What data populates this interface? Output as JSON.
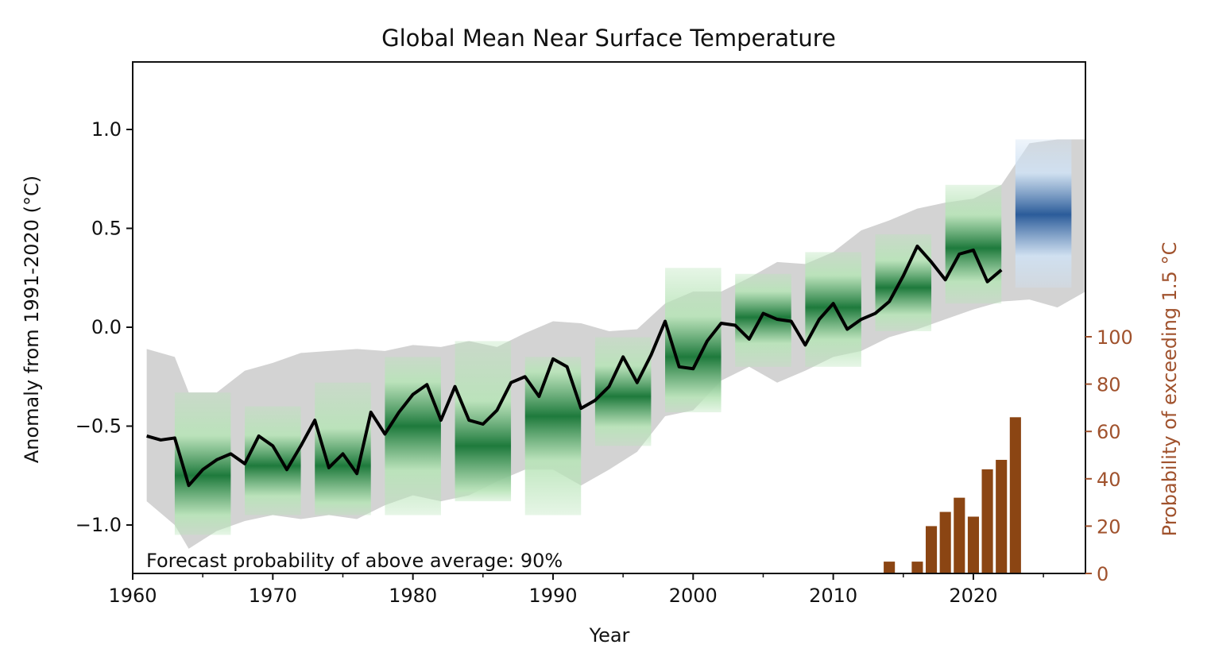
{
  "chart_data": {
    "type": "line",
    "title": "Global Mean Near Surface Temperature",
    "xlabel": "Year",
    "ylabel": "Anomaly from 1991-2020 (°C)",
    "y2label": "Probability of exceeding 1.5 °C",
    "annotation": "Forecast probability of above average: 90%",
    "xlim": [
      1960,
      2028
    ],
    "ylim": [
      -1.25,
      1.34
    ],
    "y2lim": [
      0,
      220
    ],
    "xticks": [
      "1960",
      "1970",
      "1980",
      "1990",
      "2000",
      "2010",
      "2020"
    ],
    "yticks": [
      "1.0",
      "0.5",
      "0.0",
      "−0.5",
      "−1.0"
    ],
    "ytick_values": [
      1.0,
      0.5,
      0.0,
      -0.5,
      -1.0
    ],
    "y2ticks": [
      "0",
      "20",
      "40",
      "60",
      "80",
      "100"
    ],
    "grid": false,
    "colors": {
      "observed": "#000000",
      "envelope": "#d3d3d3",
      "hindcast": "#1e7a3c",
      "forecast": "#2b5c9a",
      "probability": "#8b4513",
      "right_axis": "#a0522d"
    },
    "observed": {
      "x": [
        1961,
        1962,
        1963,
        1964,
        1965,
        1966,
        1967,
        1968,
        1969,
        1970,
        1971,
        1972,
        1973,
        1974,
        1975,
        1976,
        1977,
        1978,
        1979,
        1980,
        1981,
        1982,
        1983,
        1984,
        1985,
        1986,
        1987,
        1988,
        1989,
        1990,
        1991,
        1992,
        1993,
        1994,
        1995,
        1996,
        1997,
        1998,
        1999,
        2000,
        2001,
        2002,
        2003,
        2004,
        2005,
        2006,
        2007,
        2008,
        2009,
        2010,
        2011,
        2012,
        2013,
        2014,
        2015,
        2016,
        2017,
        2018,
        2019,
        2020,
        2021,
        2022
      ],
      "y": [
        -0.55,
        -0.57,
        -0.56,
        -0.8,
        -0.72,
        -0.67,
        -0.64,
        -0.69,
        -0.55,
        -0.6,
        -0.72,
        -0.6,
        -0.47,
        -0.71,
        -0.64,
        -0.74,
        -0.43,
        -0.54,
        -0.43,
        -0.34,
        -0.29,
        -0.47,
        -0.3,
        -0.47,
        -0.49,
        -0.42,
        -0.28,
        -0.25,
        -0.35,
        -0.16,
        -0.2,
        -0.41,
        -0.37,
        -0.3,
        -0.15,
        -0.28,
        -0.14,
        0.03,
        -0.2,
        -0.21,
        -0.07,
        0.02,
        0.01,
        -0.06,
        0.07,
        0.04,
        0.03,
        -0.09,
        0.04,
        0.12,
        -0.01,
        0.04,
        0.07,
        0.13,
        0.26,
        0.41,
        0.33,
        0.24,
        0.37,
        0.39,
        0.23,
        0.29
      ]
    },
    "envelope": {
      "x": [
        1961,
        1963,
        1964,
        1966,
        1968,
        1970,
        1972,
        1974,
        1976,
        1978,
        1980,
        1982,
        1984,
        1986,
        1988,
        1990,
        1992,
        1994,
        1996,
        1998,
        2000,
        2002,
        2004,
        2006,
        2008,
        2010,
        2012,
        2014,
        2016,
        2018,
        2020,
        2022,
        2024,
        2026,
        2028
      ],
      "upper": [
        -0.11,
        -0.15,
        -0.33,
        -0.33,
        -0.22,
        -0.18,
        -0.13,
        -0.12,
        -0.11,
        -0.12,
        -0.09,
        -0.1,
        -0.07,
        -0.1,
        -0.03,
        0.03,
        0.02,
        -0.02,
        -0.01,
        0.12,
        0.18,
        0.18,
        0.25,
        0.33,
        0.32,
        0.38,
        0.49,
        0.54,
        0.6,
        0.63,
        0.65,
        0.72,
        0.93,
        0.95,
        0.95
      ],
      "lower": [
        -0.88,
        -1.0,
        -1.12,
        -1.03,
        -0.98,
        -0.95,
        -0.97,
        -0.95,
        -0.97,
        -0.9,
        -0.85,
        -0.88,
        -0.85,
        -0.78,
        -0.72,
        -0.72,
        -0.8,
        -0.72,
        -0.63,
        -0.45,
        -0.42,
        -0.27,
        -0.2,
        -0.28,
        -0.22,
        -0.15,
        -0.12,
        -0.05,
        -0.01,
        0.04,
        0.09,
        0.13,
        0.14,
        0.1,
        0.18
      ]
    },
    "hindcasts": [
      {
        "start": 1963,
        "end": 1967,
        "top": -0.33,
        "bottom": -1.05,
        "center": -0.75
      },
      {
        "start": 1968,
        "end": 1972,
        "top": -0.4,
        "bottom": -0.95,
        "center": -0.7
      },
      {
        "start": 1973,
        "end": 1977,
        "top": -0.28,
        "bottom": -0.95,
        "center": -0.7
      },
      {
        "start": 1978,
        "end": 1982,
        "top": -0.15,
        "bottom": -0.95,
        "center": -0.5
      },
      {
        "start": 1983,
        "end": 1987,
        "top": -0.07,
        "bottom": -0.88,
        "center": -0.6
      },
      {
        "start": 1988,
        "end": 1992,
        "top": -0.15,
        "bottom": -0.95,
        "center": -0.45
      },
      {
        "start": 1993,
        "end": 1997,
        "top": -0.05,
        "bottom": -0.6,
        "center": -0.35
      },
      {
        "start": 1998,
        "end": 2002,
        "top": 0.3,
        "bottom": -0.43,
        "center": -0.15
      },
      {
        "start": 2003,
        "end": 2007,
        "top": 0.27,
        "bottom": -0.2,
        "center": 0.05
      },
      {
        "start": 2008,
        "end": 2012,
        "top": 0.38,
        "bottom": -0.2,
        "center": 0.1
      },
      {
        "start": 2013,
        "end": 2017,
        "top": 0.47,
        "bottom": -0.02,
        "center": 0.2
      },
      {
        "start": 2018,
        "end": 2022,
        "top": 0.72,
        "bottom": 0.12,
        "center": 0.4
      }
    ],
    "forecast": {
      "start": 2023,
      "end": 2027,
      "top": 0.95,
      "bottom": 0.2,
      "center": 0.57
    },
    "probability_bars": {
      "x": [
        2014,
        2016,
        2017,
        2018,
        2019,
        2020,
        2021,
        2022,
        2023
      ],
      "values": [
        5,
        5,
        20,
        26,
        32,
        24,
        44,
        48,
        66
      ]
    }
  }
}
